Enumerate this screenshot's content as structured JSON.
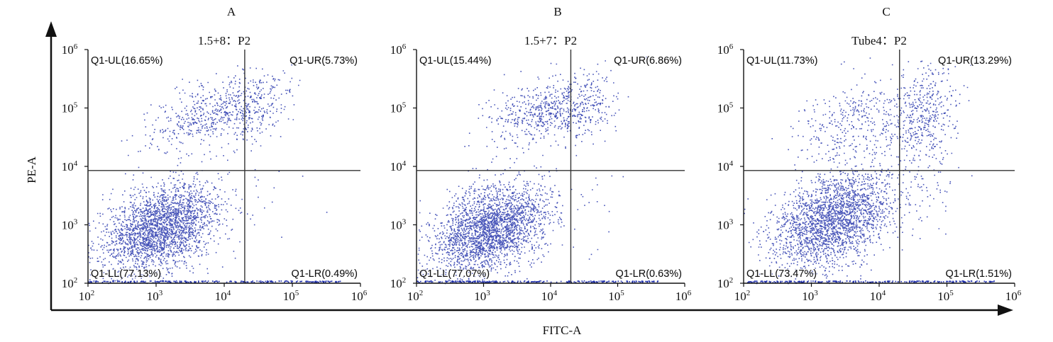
{
  "figure": {
    "global_xlabel": "FITC-A",
    "global_ylabel": "PE-A",
    "dot_color": "#1a2aa8",
    "gate_color": "#333333"
  },
  "chart_data": [
    {
      "type": "scatter",
      "panel_letter": "A",
      "title": "1.5+8：P2",
      "xscale": "log",
      "yscale": "log",
      "xlim": [
        100,
        1000000
      ],
      "ylim": [
        100,
        1000000
      ],
      "x_ticks": [
        "10",
        "10",
        "10",
        "10",
        "10"
      ],
      "x_tick_exp": [
        "2",
        "3",
        "4",
        "5",
        "6"
      ],
      "y_ticks": [
        "10",
        "10",
        "10",
        "10",
        "10"
      ],
      "y_tick_exp": [
        "2",
        "3",
        "4",
        "5",
        "6"
      ],
      "gate": {
        "x": 20000,
        "y": 8500
      },
      "quadrants": [
        {
          "name": "Q1-UL",
          "label": "Q1-UL(16.65%)",
          "percent": 16.65
        },
        {
          "name": "Q1-UR",
          "label": "Q1-UR(5.73%)",
          "percent": 5.73
        },
        {
          "name": "Q1-LL",
          "label": "Q1-LL(77.13%)",
          "percent": 77.13
        },
        {
          "name": "Q1-LR",
          "label": "Q1-LR(0.49%)",
          "percent": 0.49
        }
      ],
      "populations": [
        {
          "x": 1200,
          "y": 900,
          "spread_x": 0.42,
          "spread_y": 0.36,
          "weight": 77.13
        },
        {
          "x": 6000,
          "y": 80000,
          "spread_x": 0.45,
          "spread_y": 0.28,
          "weight": 16.65
        },
        {
          "x": 30000,
          "y": 90000,
          "spread_x": 0.25,
          "spread_y": 0.3,
          "weight": 5.73
        },
        {
          "x": 40000,
          "y": 2000,
          "spread_x": 0.3,
          "spread_y": 0.4,
          "weight": 0.49
        }
      ]
    },
    {
      "type": "scatter",
      "panel_letter": "B",
      "title": "1.5+7：P2",
      "xscale": "log",
      "yscale": "log",
      "xlim": [
        100,
        1000000
      ],
      "ylim": [
        100,
        1000000
      ],
      "x_ticks": [
        "10",
        "10",
        "10",
        "10",
        "10"
      ],
      "x_tick_exp": [
        "2",
        "3",
        "4",
        "5",
        "6"
      ],
      "y_ticks": [
        "10",
        "10",
        "10",
        "10",
        "10"
      ],
      "y_tick_exp": [
        "2",
        "3",
        "4",
        "5",
        "6"
      ],
      "gate": {
        "x": 20000,
        "y": 8500
      },
      "quadrants": [
        {
          "name": "Q1-UL",
          "label": "Q1-UL(15.44%)",
          "percent": 15.44
        },
        {
          "name": "Q1-UR",
          "label": "Q1-UR(6.86%)",
          "percent": 6.86
        },
        {
          "name": "Q1-LL",
          "label": "Q1-LL(77.07%)",
          "percent": 77.07
        },
        {
          "name": "Q1-LR",
          "label": "Q1-LR(0.63%)",
          "percent": 0.63
        }
      ],
      "populations": [
        {
          "x": 1300,
          "y": 850,
          "spread_x": 0.42,
          "spread_y": 0.36,
          "weight": 77.07
        },
        {
          "x": 7000,
          "y": 90000,
          "spread_x": 0.42,
          "spread_y": 0.27,
          "weight": 15.44
        },
        {
          "x": 30000,
          "y": 100000,
          "spread_x": 0.25,
          "spread_y": 0.28,
          "weight": 6.86
        },
        {
          "x": 40000,
          "y": 2000,
          "spread_x": 0.3,
          "spread_y": 0.4,
          "weight": 0.63
        }
      ]
    },
    {
      "type": "scatter",
      "panel_letter": "C",
      "title": "Tube4：P2",
      "xscale": "log",
      "yscale": "log",
      "xlim": [
        100,
        1000000
      ],
      "ylim": [
        100,
        1000000
      ],
      "x_ticks": [
        "10",
        "10",
        "10",
        "10",
        "10"
      ],
      "x_tick_exp": [
        "2",
        "3",
        "4",
        "5",
        "6"
      ],
      "y_ticks": [
        "10",
        "10",
        "10",
        "10",
        "10"
      ],
      "y_tick_exp": [
        "2",
        "3",
        "4",
        "5",
        "6"
      ],
      "gate": {
        "x": 20000,
        "y": 8500
      },
      "quadrants": [
        {
          "name": "Q1-UL",
          "label": "Q1-UL(11.73%)",
          "percent": 11.73
        },
        {
          "name": "Q1-UR",
          "label": "Q1-UR(13.29%)",
          "percent": 13.29
        },
        {
          "name": "Q1-LL",
          "label": "Q1-LL(73.47%)",
          "percent": 73.47
        },
        {
          "name": "Q1-LR",
          "label": "Q1-LR(1.51%)",
          "percent": 1.51
        }
      ],
      "populations": [
        {
          "x": 2000,
          "y": 1200,
          "spread_x": 0.45,
          "spread_y": 0.4,
          "weight": 73.47
        },
        {
          "x": 5000,
          "y": 60000,
          "spread_x": 0.5,
          "spread_y": 0.35,
          "weight": 11.73
        },
        {
          "x": 45000,
          "y": 70000,
          "spread_x": 0.25,
          "spread_y": 0.45,
          "weight": 13.29
        },
        {
          "x": 40000,
          "y": 2500,
          "spread_x": 0.3,
          "spread_y": 0.4,
          "weight": 1.51
        }
      ]
    }
  ]
}
